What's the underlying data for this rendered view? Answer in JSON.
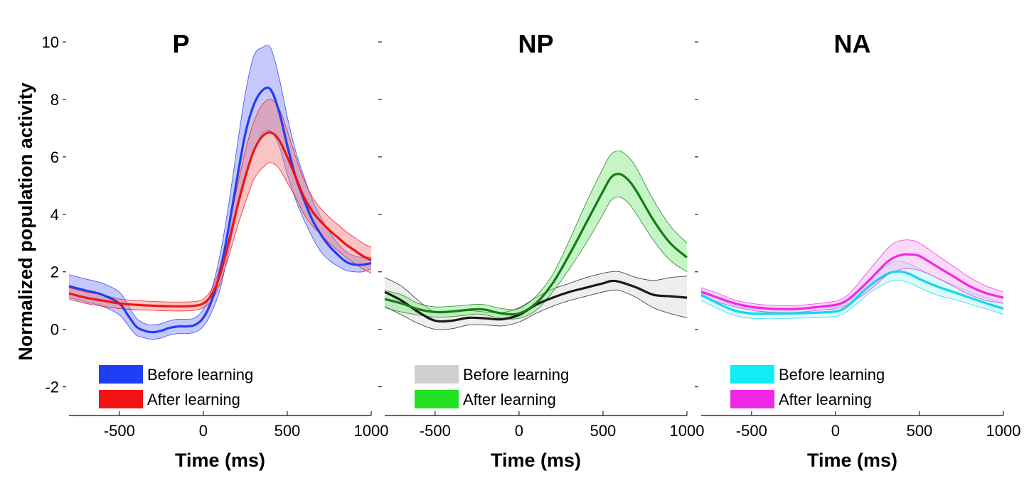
{
  "figure": {
    "ylabel": "Normalized population activity"
  },
  "chart_data": [
    {
      "type": "line",
      "title": "P",
      "xlabel": "Time (ms)",
      "ylabel": "Normalized population activity",
      "xlim": [
        -800,
        1000
      ],
      "ylim": [
        -3,
        10
      ],
      "xticks": [
        -500,
        0,
        500,
        1000
      ],
      "yticks": [
        -2,
        0,
        2,
        4,
        6,
        8,
        10
      ],
      "legend": "bottom-left",
      "series": [
        {
          "name": "Before learning",
          "color": "#1f3ff5",
          "band_color": "#7f86f0",
          "x": [
            -800,
            -700,
            -600,
            -500,
            -450,
            -400,
            -350,
            -300,
            -250,
            -200,
            -150,
            -100,
            -50,
            0,
            50,
            100,
            150,
            200,
            250,
            300,
            350,
            400,
            450,
            500,
            550,
            600,
            650,
            700,
            750,
            800,
            850,
            900,
            950,
            1000
          ],
          "y": [
            1.5,
            1.35,
            1.2,
            0.9,
            0.5,
            0.1,
            -0.05,
            -0.1,
            -0.05,
            0.05,
            0.1,
            0.1,
            0.15,
            0.4,
            1.0,
            2.0,
            3.5,
            5.2,
            6.8,
            7.8,
            8.3,
            8.35,
            7.6,
            6.4,
            5.3,
            4.5,
            3.8,
            3.3,
            2.9,
            2.6,
            2.35,
            2.25,
            2.25,
            2.3
          ],
          "upper": [
            1.9,
            1.75,
            1.6,
            1.3,
            0.85,
            0.4,
            0.2,
            0.15,
            0.2,
            0.3,
            0.35,
            0.35,
            0.4,
            0.7,
            1.4,
            2.6,
            4.3,
            6.3,
            8.2,
            9.5,
            9.8,
            9.8,
            8.8,
            7.4,
            6.2,
            5.3,
            4.5,
            3.9,
            3.4,
            3.0,
            2.7,
            2.55,
            2.5,
            2.5
          ],
          "lower": [
            1.1,
            0.95,
            0.8,
            0.5,
            0.15,
            -0.2,
            -0.3,
            -0.35,
            -0.3,
            -0.2,
            -0.15,
            -0.15,
            -0.1,
            0.1,
            0.6,
            1.4,
            2.7,
            4.1,
            5.4,
            6.2,
            6.8,
            6.9,
            6.4,
            5.4,
            4.5,
            3.8,
            3.2,
            2.7,
            2.4,
            2.2,
            2.05,
            2.0,
            2.0,
            2.1
          ]
        },
        {
          "name": "After learning",
          "color": "#f01414",
          "band_color": "#f07c7c",
          "x": [
            -800,
            -700,
            -600,
            -500,
            -400,
            -300,
            -200,
            -100,
            -50,
            0,
            50,
            100,
            150,
            200,
            250,
            300,
            350,
            400,
            450,
            500,
            550,
            600,
            650,
            700,
            750,
            800,
            850,
            900,
            950,
            1000
          ],
          "y": [
            1.25,
            1.1,
            1.0,
            0.9,
            0.85,
            0.82,
            0.8,
            0.8,
            0.82,
            0.9,
            1.2,
            1.9,
            3.0,
            4.2,
            5.3,
            6.2,
            6.7,
            6.85,
            6.6,
            6.0,
            5.3,
            4.6,
            4.1,
            3.75,
            3.45,
            3.2,
            2.95,
            2.75,
            2.55,
            2.4
          ],
          "upper": [
            1.45,
            1.3,
            1.2,
            1.05,
            1.0,
            0.97,
            0.95,
            0.95,
            0.97,
            1.05,
            1.4,
            2.2,
            3.5,
            4.9,
            6.2,
            7.2,
            7.8,
            8.0,
            7.7,
            6.9,
            6.0,
            5.2,
            4.6,
            4.2,
            3.9,
            3.65,
            3.4,
            3.2,
            3.0,
            2.85
          ],
          "lower": [
            1.05,
            0.9,
            0.8,
            0.72,
            0.68,
            0.66,
            0.64,
            0.64,
            0.66,
            0.75,
            1.0,
            1.6,
            2.5,
            3.5,
            4.4,
            5.2,
            5.6,
            5.8,
            5.6,
            5.1,
            4.6,
            4.0,
            3.6,
            3.3,
            3.0,
            2.75,
            2.5,
            2.3,
            2.1,
            1.95
          ]
        }
      ]
    },
    {
      "type": "line",
      "title": "NP",
      "xlabel": "Time (ms)",
      "xlim": [
        -800,
        1000
      ],
      "ylim": [
        -3,
        10
      ],
      "xticks": [
        -500,
        0,
        500,
        1000
      ],
      "yticks": [
        -2,
        0,
        2,
        4,
        6,
        8,
        10
      ],
      "legend": "bottom-left",
      "series": [
        {
          "name": "Before learning",
          "color": "#1a1a1a",
          "band_color": "#d9d9d9",
          "x": [
            -800,
            -700,
            -600,
            -500,
            -400,
            -300,
            -200,
            -100,
            0,
            100,
            200,
            300,
            400,
            500,
            550,
            600,
            700,
            800,
            900,
            1000
          ],
          "y": [
            1.3,
            1.0,
            0.6,
            0.3,
            0.3,
            0.4,
            0.38,
            0.35,
            0.5,
            0.85,
            1.1,
            1.3,
            1.45,
            1.6,
            1.68,
            1.65,
            1.45,
            1.2,
            1.15,
            1.1
          ],
          "upper": [
            1.8,
            1.5,
            1.0,
            0.6,
            0.6,
            0.65,
            0.6,
            0.58,
            0.75,
            1.1,
            1.4,
            1.6,
            1.8,
            1.95,
            2.0,
            2.0,
            1.8,
            1.7,
            1.8,
            1.85
          ],
          "lower": [
            0.8,
            0.5,
            0.2,
            0.0,
            0.02,
            0.15,
            0.15,
            0.12,
            0.25,
            0.55,
            0.8,
            1.0,
            1.15,
            1.3,
            1.35,
            1.35,
            1.1,
            0.75,
            0.55,
            0.4
          ]
        },
        {
          "name": "After learning",
          "color": "#167a16",
          "band_color": "#7ee87e",
          "x": [
            -800,
            -700,
            -600,
            -500,
            -400,
            -300,
            -250,
            -200,
            -100,
            0,
            100,
            200,
            300,
            400,
            500,
            550,
            600,
            650,
            700,
            800,
            900,
            1000
          ],
          "y": [
            1.05,
            0.9,
            0.7,
            0.6,
            0.62,
            0.68,
            0.7,
            0.68,
            0.55,
            0.55,
            0.9,
            1.6,
            2.6,
            3.7,
            4.8,
            5.3,
            5.4,
            5.2,
            4.8,
            3.8,
            3.0,
            2.5
          ],
          "upper": [
            1.35,
            1.2,
            0.9,
            0.78,
            0.8,
            0.85,
            0.87,
            0.85,
            0.72,
            0.72,
            1.15,
            1.9,
            3.1,
            4.4,
            5.6,
            6.1,
            6.2,
            6.0,
            5.6,
            4.5,
            3.6,
            3.0
          ],
          "lower": [
            0.75,
            0.6,
            0.5,
            0.42,
            0.44,
            0.5,
            0.53,
            0.5,
            0.38,
            0.38,
            0.65,
            1.3,
            2.1,
            3.0,
            4.0,
            4.5,
            4.6,
            4.4,
            4.0,
            3.1,
            2.4,
            2.0
          ]
        }
      ]
    },
    {
      "type": "line",
      "title": "NA",
      "xlabel": "Time (ms)",
      "xlim": [
        -800,
        1000
      ],
      "ylim": [
        -3,
        10
      ],
      "xticks": [
        -500,
        0,
        500,
        1000
      ],
      "yticks": [
        -2,
        0,
        2,
        4,
        6,
        8,
        10
      ],
      "legend": "bottom-left",
      "series": [
        {
          "name": "Before learning",
          "color": "#12d8e8",
          "band_color": "#b4f5f9",
          "x": [
            -800,
            -700,
            -600,
            -500,
            -400,
            -300,
            -200,
            -100,
            0,
            50,
            100,
            200,
            300,
            350,
            400,
            450,
            500,
            600,
            700,
            800,
            900,
            1000
          ],
          "y": [
            1.2,
            0.9,
            0.65,
            0.55,
            0.55,
            0.55,
            0.56,
            0.58,
            0.62,
            0.72,
            0.95,
            1.5,
            1.9,
            2.0,
            2.0,
            1.9,
            1.75,
            1.5,
            1.3,
            1.1,
            0.9,
            0.72
          ],
          "upper": [
            1.4,
            1.08,
            0.82,
            0.72,
            0.72,
            0.72,
            0.73,
            0.75,
            0.8,
            0.9,
            1.15,
            1.75,
            2.2,
            2.35,
            2.35,
            2.25,
            2.1,
            1.8,
            1.55,
            1.3,
            1.1,
            0.9
          ],
          "lower": [
            1.0,
            0.72,
            0.48,
            0.38,
            0.38,
            0.38,
            0.39,
            0.41,
            0.45,
            0.55,
            0.75,
            1.25,
            1.6,
            1.7,
            1.68,
            1.6,
            1.45,
            1.2,
            1.05,
            0.88,
            0.7,
            0.52
          ]
        },
        {
          "name": "After learning",
          "color": "#f028e6",
          "band_color": "#f8a8f2",
          "x": [
            -800,
            -700,
            -600,
            -500,
            -400,
            -300,
            -200,
            -100,
            0,
            50,
            100,
            200,
            300,
            350,
            400,
            450,
            500,
            600,
            700,
            800,
            900,
            1000
          ],
          "y": [
            1.3,
            1.1,
            0.9,
            0.78,
            0.72,
            0.7,
            0.72,
            0.78,
            0.85,
            0.95,
            1.15,
            1.7,
            2.3,
            2.5,
            2.6,
            2.6,
            2.55,
            2.2,
            1.85,
            1.5,
            1.25,
            1.1
          ],
          "upper": [
            1.45,
            1.25,
            1.02,
            0.9,
            0.84,
            0.82,
            0.84,
            0.9,
            0.98,
            1.1,
            1.35,
            2.05,
            2.75,
            3.0,
            3.1,
            3.1,
            3.0,
            2.6,
            2.2,
            1.8,
            1.5,
            1.3
          ],
          "lower": [
            1.15,
            0.95,
            0.78,
            0.66,
            0.6,
            0.58,
            0.6,
            0.66,
            0.72,
            0.8,
            0.95,
            1.35,
            1.85,
            2.0,
            2.1,
            2.1,
            2.05,
            1.8,
            1.5,
            1.2,
            1.0,
            0.9
          ]
        }
      ]
    }
  ]
}
